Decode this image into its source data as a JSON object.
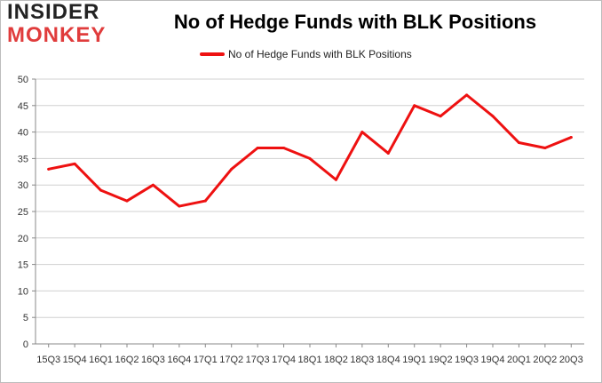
{
  "logo": {
    "top": "INSIDER",
    "bottom": "MONKEY"
  },
  "colors": {
    "series": "#ee1111",
    "grid": "#d0d0d0",
    "logo_dark": "#232323",
    "logo_red": "#e03c3c"
  },
  "chart_data": {
    "type": "line",
    "title": "No of Hedge Funds with BLK Positions",
    "xlabel": "",
    "ylabel": "",
    "ylim": [
      0,
      50
    ],
    "yticks": [
      0,
      5,
      10,
      15,
      20,
      25,
      30,
      35,
      40,
      45,
      50
    ],
    "grid": "horizontal",
    "legend_position": "top-center",
    "categories": [
      "15Q3",
      "15Q4",
      "16Q1",
      "16Q2",
      "16Q3",
      "16Q4",
      "17Q1",
      "17Q2",
      "17Q3",
      "17Q4",
      "18Q1",
      "18Q2",
      "18Q3",
      "18Q4",
      "19Q1",
      "19Q2",
      "19Q3",
      "19Q4",
      "20Q1",
      "20Q2",
      "20Q3"
    ],
    "series": [
      {
        "name": "No of Hedge Funds with BLK Positions",
        "values": [
          33,
          34,
          29,
          27,
          30,
          26,
          27,
          33,
          37,
          37,
          35,
          31,
          40,
          36,
          45,
          43,
          47,
          43,
          38,
          37,
          39
        ]
      }
    ]
  }
}
